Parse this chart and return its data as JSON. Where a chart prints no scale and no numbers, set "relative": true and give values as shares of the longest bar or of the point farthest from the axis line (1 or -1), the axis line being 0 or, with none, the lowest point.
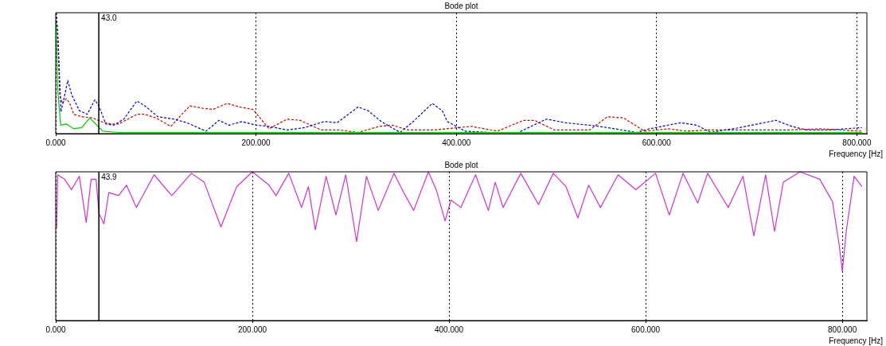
{
  "chart_data": [
    {
      "type": "line",
      "title": "Bode plot",
      "xlabel": "Frequency [Hz]",
      "relative": true,
      "line_style": "dashed",
      "grid": "x",
      "legend": false,
      "xlim": [
        0,
        810
      ],
      "xticks": [
        {
          "value": 0,
          "label": "0.000"
        },
        {
          "value": 200,
          "label": "200.000"
        },
        {
          "value": 400,
          "label": "400.000"
        },
        {
          "value": 600,
          "label": "600.000"
        },
        {
          "value": 800,
          "label": "800.000"
        }
      ],
      "ref_lines": [
        {
          "axis": "x",
          "value": 43.0,
          "label": "43.0",
          "color": "#000000"
        }
      ],
      "series": [
        {
          "color": "#00cc00",
          "line_style": "solid",
          "x": [
            0.5,
            2,
            5,
            10.5,
            18,
            26,
            34,
            41,
            47,
            63,
            150,
            300,
            450,
            600,
            805
          ],
          "values": [
            0.92,
            0.36,
            0.07,
            0.08,
            0.04,
            0.05,
            0.13,
            0.07,
            0.02,
            0.01,
            0.01,
            0.01,
            0.01,
            0.01,
            0.01
          ]
        },
        {
          "color": "#0000cc",
          "x": [
            0.5,
            2.6,
            5.2,
            9,
            12,
            16,
            23.6,
            31.5,
            39,
            43,
            50,
            58,
            68,
            81,
            89,
            102,
            118,
            131,
            150,
            163,
            173,
            186,
            200,
            213,
            231,
            249,
            268,
            281,
            302,
            312,
            325,
            344,
            357,
            376,
            386,
            391,
            409,
            433,
            462,
            490,
            509,
            533,
            551,
            580,
            593,
            624,
            640,
            654,
            683,
            719,
            735,
            750,
            772,
            805
          ],
          "values": [
            1.0,
            0.73,
            0.18,
            0.32,
            0.44,
            0.32,
            0.19,
            0.16,
            0.28,
            0.23,
            0.08,
            0.07,
            0.12,
            0.27,
            0.23,
            0.14,
            0.12,
            0.09,
            0.02,
            0.11,
            0.07,
            0.1,
            0.07,
            0.06,
            0.03,
            0.05,
            0.1,
            0.09,
            0.22,
            0.19,
            0.1,
            0.01,
            0.1,
            0.25,
            0.19,
            0.1,
            0.02,
            0.01,
            0.01,
            0.12,
            0.09,
            0.07,
            0.05,
            0.01,
            0.04,
            0.09,
            0.07,
            0.01,
            0.05,
            0.11,
            0.06,
            0.03,
            0.03,
            0.05
          ]
        },
        {
          "color": "#cc0000",
          "x": [
            0.5,
            2,
            4,
            6.6,
            10.5,
            14,
            18,
            26,
            37,
            45,
            55,
            63,
            81,
            89,
            100,
            115,
            126,
            134,
            147,
            157,
            171,
            184,
            197,
            205,
            213,
            231,
            244,
            265,
            283,
            302,
            323,
            336,
            352,
            362,
            378,
            415,
            441,
            467,
            478,
            498,
            533,
            551,
            567,
            588,
            612,
            630,
            651,
            683,
            703,
            730,
            764,
            805
          ],
          "values": [
            1.0,
            0.82,
            0.32,
            0.25,
            0.29,
            0.25,
            0.16,
            0.14,
            0.13,
            0.1,
            0.08,
            0.08,
            0.16,
            0.16,
            0.13,
            0.06,
            0.16,
            0.23,
            0.21,
            0.2,
            0.25,
            0.22,
            0.2,
            0.12,
            0.04,
            0.12,
            0.11,
            0.03,
            0.03,
            0.01,
            0.06,
            0.07,
            0.03,
            0.03,
            0.03,
            0.06,
            0.02,
            0.11,
            0.11,
            0.03,
            0.03,
            0.14,
            0.13,
            0.02,
            0.04,
            0.02,
            0.03,
            0.03,
            0.03,
            0.03,
            0.04,
            0.02
          ]
        }
      ]
    },
    {
      "type": "line",
      "title": "Bode plot",
      "xlabel": "Frequency [Hz]",
      "relative": true,
      "grid": "x",
      "legend": false,
      "xlim": [
        0,
        825
      ],
      "xticks": [
        {
          "value": 0,
          "label": "0.000"
        },
        {
          "value": 200,
          "label": "200.000"
        },
        {
          "value": 400,
          "label": "400.000"
        },
        {
          "value": 600,
          "label": "600.000"
        },
        {
          "value": 800,
          "label": "800.000"
        }
      ],
      "ref_lines": [
        {
          "axis": "x",
          "value": 43.9,
          "label": "43.9",
          "color": "#000000"
        }
      ],
      "series": [
        {
          "color": "#cc33cc",
          "x": [
            1,
            2,
            9,
            16,
            24,
            31,
            36,
            41,
            44,
            49,
            54,
            64,
            72,
            82,
            100,
            118,
            138,
            151,
            168,
            184,
            200,
            217,
            224,
            237,
            250,
            257,
            264,
            275,
            285,
            295,
            306,
            316,
            328,
            344,
            354,
            364,
            379,
            387,
            396,
            402,
            412,
            427,
            440,
            447,
            455,
            473,
            491,
            506,
            519,
            531,
            542,
            554,
            572,
            590,
            610,
            624,
            638,
            653,
            663,
            684,
            699,
            710,
            722,
            731,
            740,
            757,
            777,
            790,
            797,
            800,
            804,
            812,
            820
          ],
          "values": [
            0.62,
            0.98,
            0.95,
            0.88,
            0.97,
            0.66,
            0.95,
            0.95,
            0.72,
            0.65,
            0.86,
            0.84,
            0.91,
            0.76,
            0.98,
            0.84,
            0.99,
            0.93,
            0.63,
            0.9,
            1.0,
            0.91,
            0.84,
            0.99,
            0.76,
            0.9,
            0.61,
            0.97,
            0.71,
            0.98,
            0.53,
            0.97,
            0.74,
            0.99,
            0.86,
            0.74,
            1.0,
            0.88,
            0.67,
            0.81,
            0.76,
            0.98,
            0.74,
            0.93,
            0.76,
            0.99,
            0.78,
            0.99,
            0.9,
            0.69,
            0.91,
            0.76,
            0.98,
            0.88,
            0.99,
            0.71,
            0.99,
            0.79,
            0.99,
            0.76,
            0.97,
            0.57,
            0.98,
            0.6,
            0.93,
            1.0,
            0.95,
            0.8,
            0.5,
            0.33,
            0.6,
            0.97,
            0.9
          ]
        }
      ]
    }
  ]
}
